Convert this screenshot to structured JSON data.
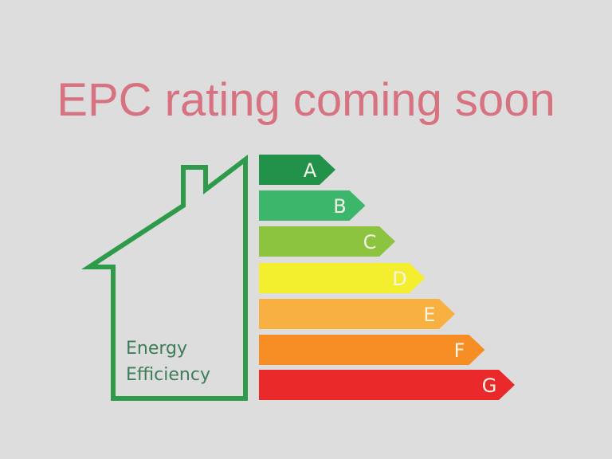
{
  "title": "EPC rating coming soon",
  "house": {
    "line1": "Energy",
    "line2": "Efficiency",
    "color": "#2e9b4a"
  },
  "bands": [
    {
      "letter": "A",
      "color": "#22924a"
    },
    {
      "letter": "B",
      "color": "#3cb66a"
    },
    {
      "letter": "C",
      "color": "#8cc43f"
    },
    {
      "letter": "D",
      "color": "#f3ee2e"
    },
    {
      "letter": "E",
      "color": "#f8b040"
    },
    {
      "letter": "F",
      "color": "#f68e25"
    },
    {
      "letter": "G",
      "color": "#ea2a2a"
    }
  ]
}
